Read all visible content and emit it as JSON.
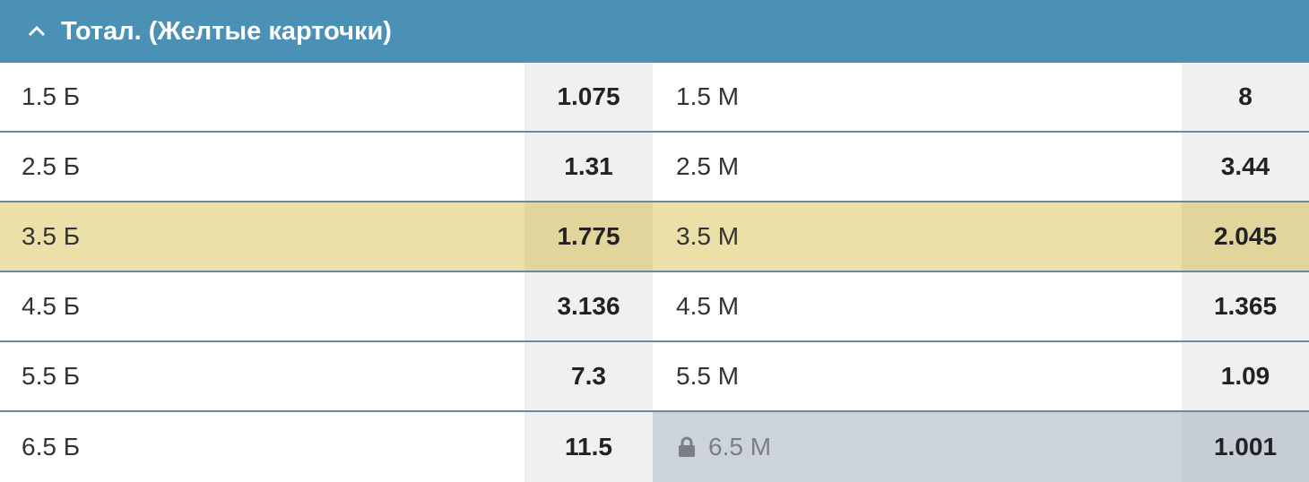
{
  "header": {
    "title": "Тотал. (Желтые карточки)"
  },
  "rows": [
    {
      "over_label": "1.5 Б",
      "over_odds": "1.075",
      "under_label": "1.5 М",
      "under_odds": "8",
      "highlighted": false,
      "under_locked": false
    },
    {
      "over_label": "2.5 Б",
      "over_odds": "1.31",
      "under_label": "2.5 М",
      "under_odds": "3.44",
      "highlighted": false,
      "under_locked": false
    },
    {
      "over_label": "3.5 Б",
      "over_odds": "1.775",
      "under_label": "3.5 М",
      "under_odds": "2.045",
      "highlighted": true,
      "under_locked": false
    },
    {
      "over_label": "4.5 Б",
      "over_odds": "3.136",
      "under_label": "4.5 М",
      "under_odds": "1.365",
      "highlighted": false,
      "under_locked": false
    },
    {
      "over_label": "5.5 Б",
      "over_odds": "7.3",
      "under_label": "5.5 М",
      "under_odds": "1.09",
      "highlighted": false,
      "under_locked": false
    },
    {
      "over_label": "6.5 Б",
      "over_odds": "11.5",
      "under_label": "6.5 М",
      "under_odds": "1.001",
      "highlighted": false,
      "under_locked": true
    }
  ]
}
